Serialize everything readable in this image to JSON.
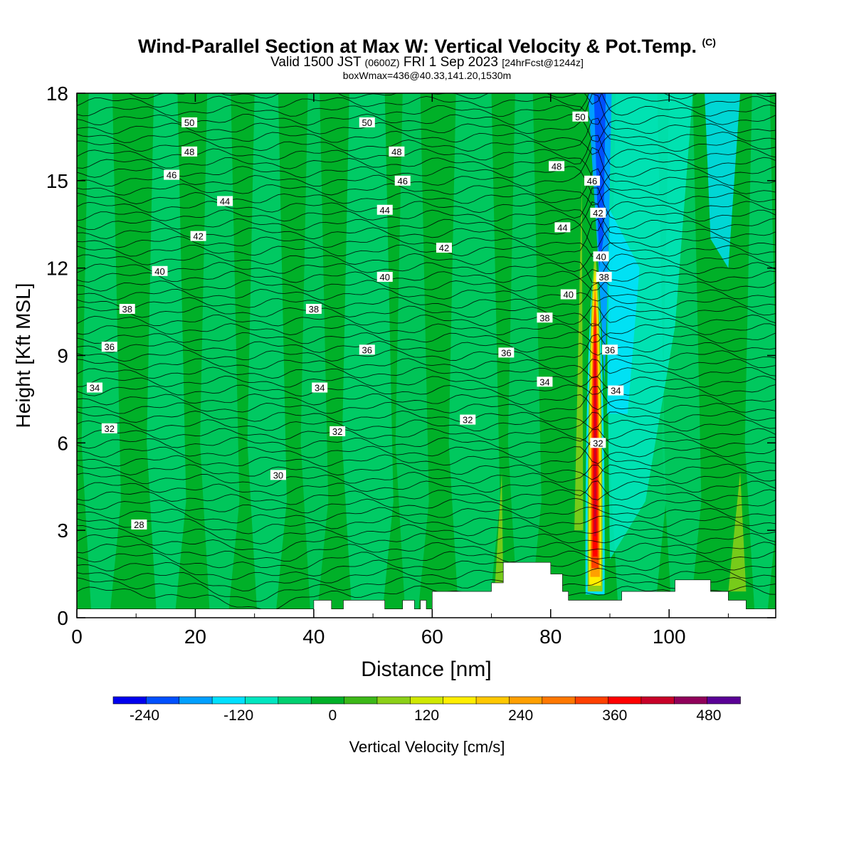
{
  "title": {
    "main": "Wind-Parallel Section at Max W: Vertical Velocity & Pot.Temp.",
    "copyright": "(C)",
    "valid_prefix": "Valid 1500 JST",
    "utc": "(0600Z)",
    "valid_date": "FRI 1 Sep 2023",
    "forecast": "[24hrFcst@1244z]",
    "box_info": "boxWmax=436@40.33,141.20,1530m"
  },
  "chart_data": {
    "type": "heatmap",
    "xlabel": "Distance [nm]",
    "ylabel": "Height [Kft MSL]",
    "xlim": [
      0,
      118
    ],
    "ylim": [
      0,
      18
    ],
    "x_ticks": [
      "0",
      "20",
      "40",
      "60",
      "80",
      "100"
    ],
    "y_ticks": [
      "0",
      "3",
      "6",
      "9",
      "12",
      "15",
      "18"
    ],
    "colorbar": {
      "label": "Vertical Velocity [cm/s]",
      "tick_labels": [
        "-240",
        "-120",
        "0",
        "120",
        "240",
        "360",
        "480"
      ],
      "tick_values": [
        -240,
        -120,
        0,
        120,
        240,
        360,
        480
      ],
      "range": [
        -280,
        520
      ],
      "colors": [
        "#0000ee",
        "#0050ff",
        "#00a0ff",
        "#00e0ff",
        "#00e6c0",
        "#00d070",
        "#00b028",
        "#3cb818",
        "#8cd018",
        "#d0e800",
        "#ffee00",
        "#ffc800",
        "#ffa000",
        "#ff7800",
        "#ff4000",
        "#ff0000",
        "#c80028",
        "#90005a",
        "#5a0096"
      ]
    },
    "theta_contour_labels": [
      {
        "x": 19,
        "y": 17.0,
        "label": "50"
      },
      {
        "x": 49,
        "y": 17.0,
        "label": "50"
      },
      {
        "x": 85,
        "y": 17.2,
        "label": "50"
      },
      {
        "x": 19,
        "y": 16.0,
        "label": "48"
      },
      {
        "x": 54,
        "y": 16.0,
        "label": "48"
      },
      {
        "x": 81,
        "y": 15.5,
        "label": "48"
      },
      {
        "x": 16,
        "y": 15.2,
        "label": "46"
      },
      {
        "x": 55,
        "y": 15.0,
        "label": "46"
      },
      {
        "x": 87,
        "y": 15.0,
        "label": "46"
      },
      {
        "x": 25,
        "y": 14.3,
        "label": "44"
      },
      {
        "x": 52,
        "y": 14.0,
        "label": "44"
      },
      {
        "x": 82,
        "y": 13.4,
        "label": "44"
      },
      {
        "x": 20.5,
        "y": 13.1,
        "label": "42"
      },
      {
        "x": 62,
        "y": 12.7,
        "label": "42"
      },
      {
        "x": 88,
        "y": 13.9,
        "label": "42"
      },
      {
        "x": 14,
        "y": 11.9,
        "label": "40"
      },
      {
        "x": 52,
        "y": 11.7,
        "label": "40"
      },
      {
        "x": 83,
        "y": 11.1,
        "label": "40"
      },
      {
        "x": 88.5,
        "y": 12.4,
        "label": "40"
      },
      {
        "x": 8.5,
        "y": 10.6,
        "label": "38"
      },
      {
        "x": 40,
        "y": 10.6,
        "label": "38"
      },
      {
        "x": 79,
        "y": 10.3,
        "label": "38"
      },
      {
        "x": 89,
        "y": 11.7,
        "label": "38"
      },
      {
        "x": 5.5,
        "y": 9.3,
        "label": "36"
      },
      {
        "x": 49,
        "y": 9.2,
        "label": "36"
      },
      {
        "x": 72.5,
        "y": 9.1,
        "label": "36"
      },
      {
        "x": 90,
        "y": 9.2,
        "label": "36"
      },
      {
        "x": 3,
        "y": 7.9,
        "label": "34"
      },
      {
        "x": 41,
        "y": 7.9,
        "label": "34"
      },
      {
        "x": 79,
        "y": 8.1,
        "label": "34"
      },
      {
        "x": 91,
        "y": 7.8,
        "label": "34"
      },
      {
        "x": 5.5,
        "y": 6.5,
        "label": "32"
      },
      {
        "x": 44,
        "y": 6.4,
        "label": "32"
      },
      {
        "x": 66,
        "y": 6.8,
        "label": "32"
      },
      {
        "x": 88,
        "y": 6.0,
        "label": "32"
      },
      {
        "x": 34,
        "y": 4.9,
        "label": "30"
      },
      {
        "x": 10.5,
        "y": 3.2,
        "label": "28"
      }
    ],
    "terrain": [
      [
        0,
        0.3
      ],
      [
        40,
        0.3
      ],
      [
        40,
        0.6
      ],
      [
        43,
        0.6
      ],
      [
        43,
        0.3
      ],
      [
        45,
        0.3
      ],
      [
        45,
        0.6
      ],
      [
        52,
        0.6
      ],
      [
        52,
        0.3
      ],
      [
        55,
        0.3
      ],
      [
        55,
        0.6
      ],
      [
        57,
        0.6
      ],
      [
        57,
        0.3
      ],
      [
        58,
        0.3
      ],
      [
        58,
        0.6
      ],
      [
        59,
        0.6
      ],
      [
        59,
        0.3
      ],
      [
        60,
        0.3
      ],
      [
        60,
        0.9
      ],
      [
        70,
        0.9
      ],
      [
        70,
        1.2
      ],
      [
        72,
        1.2
      ],
      [
        72,
        1.9
      ],
      [
        80,
        1.9
      ],
      [
        80,
        1.5
      ],
      [
        82,
        1.5
      ],
      [
        82,
        0.9
      ],
      [
        83,
        0.9
      ],
      [
        83,
        0.6
      ],
      [
        92,
        0.6
      ],
      [
        92,
        0.9
      ],
      [
        101,
        0.9
      ],
      [
        101,
        1.3
      ],
      [
        107,
        1.3
      ],
      [
        107,
        0.9
      ],
      [
        110,
        0.9
      ],
      [
        110,
        0.6
      ],
      [
        113,
        0.6
      ],
      [
        113,
        0.3
      ],
      [
        118,
        0.3
      ],
      [
        118,
        0
      ],
      [
        0,
        0
      ]
    ],
    "updraft_core": {
      "x": 87.5,
      "max_cm_s": 436,
      "base_kft": 0.8,
      "top_kft": 12.5
    },
    "downdraft_core": {
      "x": 88.5,
      "min_cm_s": -240,
      "base_kft": 8,
      "top_kft": 18
    }
  }
}
